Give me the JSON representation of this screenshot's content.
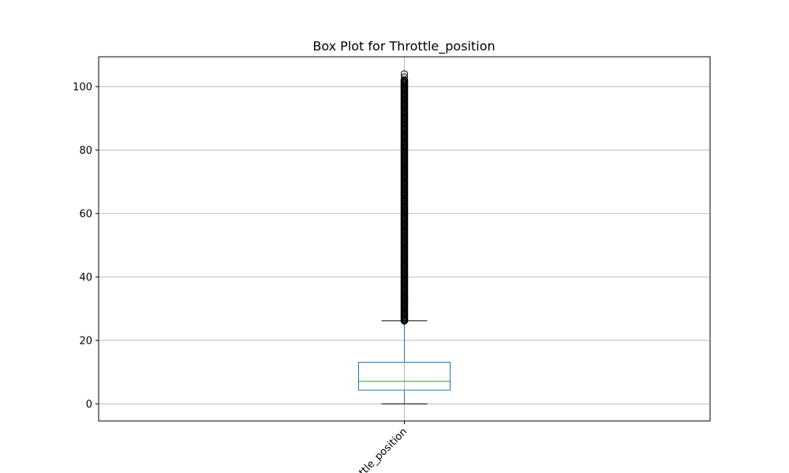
{
  "chart_data": {
    "type": "box",
    "title": "Box Plot for Throttle_position",
    "xlabel": "",
    "ylabel": "",
    "categories": [
      "Throttle_position"
    ],
    "ylim": [
      -5.4,
      109.4
    ],
    "yticks": [
      0,
      20,
      40,
      60,
      80,
      100
    ],
    "grid": true,
    "xtick_rotation": 45,
    "boxes": [
      {
        "category": "Throttle_position",
        "whisker_low": 0,
        "q1": 4.3,
        "median": 7.1,
        "q3": 13.1,
        "whisker_high": 26.2,
        "outlier_range": [
          26.2,
          102.0
        ],
        "outlier_max": 104.0
      }
    ],
    "colors": {
      "box": "#1f77b4",
      "median": "#2ca02c",
      "whisker_cap": "#000000",
      "outlier": "#000000",
      "grid": "#b0b0b0"
    }
  }
}
